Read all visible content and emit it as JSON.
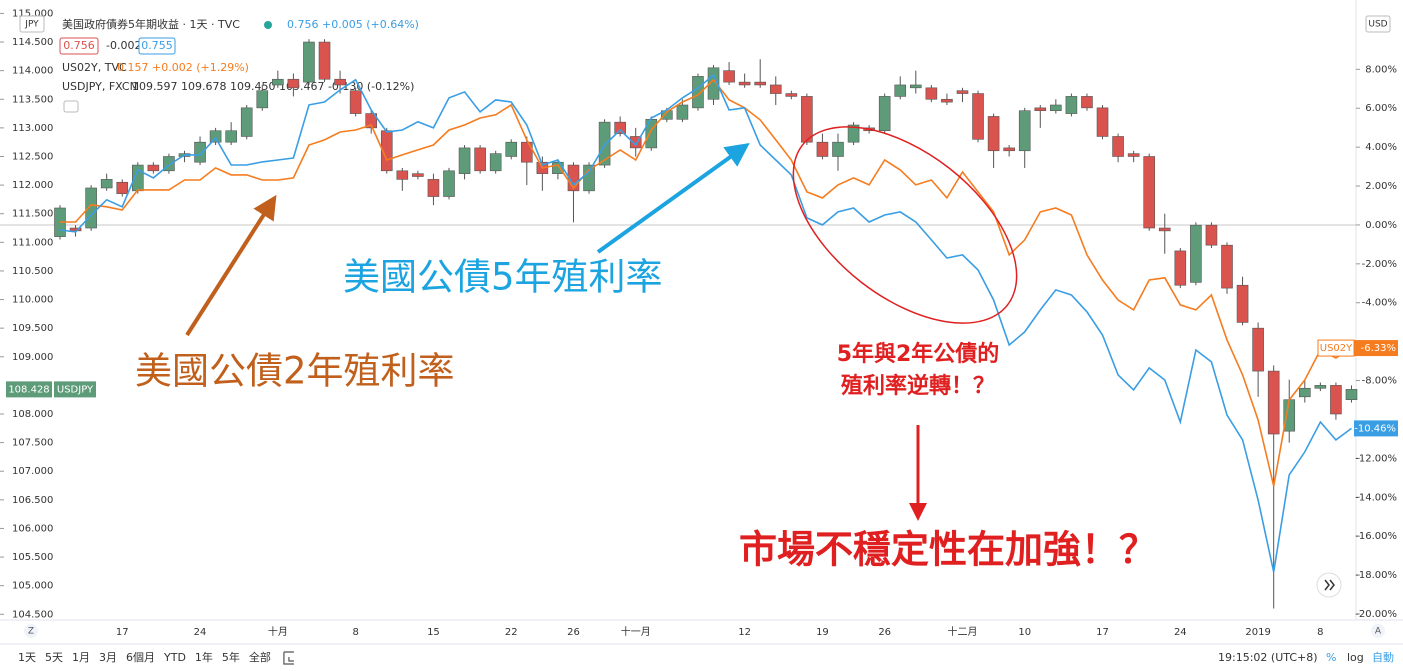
{
  "header": {
    "title": "美国政府債券5年期收益 · 1天 · TVC",
    "quote": "0.756 +0.005 (+0.64%)",
    "box1": "0.756",
    "change": "-0.002",
    "box2": "0.755",
    "line2_name": "US02Y, TVC",
    "line2_quote": "0.157 +0.002 (+1.29%)",
    "line3_name": "USDJPY, FXCM",
    "line3_quote": "109.597 109.678 109.450 109.467 -0.130 (-0.12%)"
  },
  "chart_data": {
    "type": "candlestick",
    "left_unit": "JPY",
    "right_unit": "USD",
    "symbol": "USDJPY",
    "last_price_label": "108.428",
    "up_color": "#5e9c79",
    "down_color": "#d9534f",
    "categories": [
      null,
      null,
      null,
      null,
      "17",
      null,
      null,
      null,
      null,
      "24",
      null,
      null,
      null,
      null,
      "十月",
      null,
      null,
      null,
      null,
      "8",
      null,
      null,
      null,
      null,
      "15",
      null,
      null,
      null,
      null,
      "22",
      null,
      null,
      null,
      "26",
      null,
      null,
      null,
      "十一月",
      null,
      null,
      null,
      null,
      null,
      null,
      "12",
      null,
      null,
      null,
      null,
      "19",
      null,
      null,
      null,
      "26",
      null,
      null,
      null,
      null,
      "十二月",
      null,
      null,
      null,
      "10",
      null,
      null,
      null,
      null,
      "17",
      null,
      null,
      null,
      null,
      "24",
      null,
      null,
      null,
      null,
      "2019",
      null,
      null,
      null,
      "8",
      null,
      null
    ],
    "candles": {
      "open": [
        111.1,
        111.25,
        111.25,
        111.95,
        112.05,
        111.9,
        112.35,
        112.25,
        112.5,
        112.4,
        112.75,
        112.75,
        112.85,
        113.35,
        113.75,
        113.85,
        113.8,
        114.5,
        113.85,
        113.65,
        113.25,
        112.95,
        112.25,
        112.2,
        112.1,
        111.8,
        112.2,
        112.65,
        112.25,
        112.5,
        112.75,
        112.4,
        112.2,
        112.35,
        111.9,
        112.35,
        113.1,
        112.85,
        112.65,
        113.15,
        113.15,
        113.35,
        113.5,
        114.0,
        113.8,
        113.8,
        113.75,
        113.6,
        113.55,
        112.75,
        112.5,
        112.75,
        113.0,
        112.95,
        113.55,
        113.7,
        113.7,
        113.5,
        113.65,
        113.6,
        113.2,
        112.65,
        112.6,
        113.35,
        113.3,
        113.25,
        113.55,
        113.35,
        112.85,
        112.55,
        112.5,
        111.25,
        110.85,
        110.3,
        111.3,
        110.95,
        110.25,
        109.5,
        108.75,
        107.7,
        108.3,
        108.45,
        108.5,
        108.25
      ],
      "high": [
        111.65,
        111.3,
        112.0,
        112.2,
        112.1,
        112.4,
        112.4,
        112.55,
        112.6,
        112.85,
        113.0,
        113.1,
        113.4,
        113.75,
        114.0,
        113.95,
        114.55,
        114.55,
        114.0,
        113.7,
        113.3,
        113.0,
        112.3,
        112.25,
        112.2,
        112.3,
        112.7,
        112.7,
        112.6,
        112.8,
        112.85,
        112.5,
        112.45,
        112.4,
        112.4,
        113.15,
        113.2,
        113.0,
        113.2,
        113.35,
        113.5,
        113.95,
        114.1,
        114.15,
        113.95,
        114.2,
        113.9,
        113.65,
        113.6,
        112.9,
        112.9,
        113.1,
        113.05,
        113.6,
        113.9,
        114.0,
        113.75,
        113.6,
        113.7,
        113.65,
        113.25,
        112.7,
        113.35,
        113.4,
        113.5,
        113.6,
        113.6,
        113.4,
        112.9,
        112.6,
        112.55,
        111.5,
        110.9,
        111.35,
        111.35,
        111.0,
        110.4,
        109.6,
        108.85,
        108.6,
        108.6,
        108.55,
        108.55,
        108.5
      ],
      "low": [
        111.05,
        111.1,
        111.2,
        111.9,
        111.8,
        111.85,
        112.2,
        112.2,
        112.4,
        112.35,
        112.7,
        112.7,
        112.8,
        113.3,
        113.7,
        113.55,
        113.75,
        113.8,
        113.6,
        113.2,
        112.9,
        112.2,
        111.9,
        112.1,
        111.65,
        111.75,
        112.1,
        112.2,
        112.2,
        112.45,
        112.0,
        111.9,
        112.1,
        111.35,
        111.85,
        112.3,
        112.85,
        112.5,
        112.6,
        113.1,
        113.1,
        113.3,
        113.4,
        113.75,
        113.7,
        113.7,
        113.4,
        113.5,
        112.7,
        112.45,
        112.25,
        112.7,
        112.9,
        112.9,
        113.5,
        113.6,
        113.45,
        113.4,
        113.45,
        112.75,
        112.3,
        112.5,
        112.3,
        113.0,
        113.25,
        113.2,
        113.3,
        112.8,
        112.4,
        112.4,
        111.2,
        110.8,
        110.2,
        110.25,
        110.9,
        110.1,
        109.55,
        108.3,
        104.6,
        107.5,
        108.2,
        108.4,
        107.9,
        108.2
      ],
      "close": [
        111.6,
        111.2,
        111.95,
        112.1,
        111.85,
        112.35,
        112.25,
        112.5,
        112.55,
        112.75,
        112.95,
        112.95,
        113.35,
        113.65,
        113.85,
        113.7,
        114.5,
        113.85,
        113.75,
        113.25,
        113.0,
        112.25,
        112.1,
        112.15,
        111.8,
        112.25,
        112.65,
        112.25,
        112.55,
        112.75,
        112.4,
        112.2,
        112.4,
        111.9,
        112.35,
        113.1,
        112.9,
        112.65,
        113.15,
        113.3,
        113.4,
        113.9,
        114.05,
        113.8,
        113.75,
        113.75,
        113.6,
        113.55,
        112.75,
        112.5,
        112.75,
        113.05,
        112.95,
        113.55,
        113.75,
        113.75,
        113.5,
        113.45,
        113.6,
        112.8,
        112.6,
        112.6,
        113.3,
        113.3,
        113.4,
        113.55,
        113.35,
        112.85,
        112.5,
        112.5,
        111.25,
        111.2,
        110.25,
        111.3,
        110.95,
        110.2,
        109.6,
        108.75,
        107.65,
        108.25,
        108.45,
        108.5,
        108.0,
        108.43
      ]
    },
    "series": [
      {
        "name": "US02Y",
        "color": "#f57c1f",
        "axis": "y2",
        "last_label": "-6.33%",
        "values": [
          0.15,
          0.15,
          1.03,
          0.93,
          0.77,
          1.8,
          1.8,
          1.8,
          2.31,
          2.31,
          2.93,
          2.57,
          2.57,
          2.31,
          2.31,
          2.42,
          4.11,
          4.37,
          4.78,
          4.88,
          5.14,
          3.34,
          3.6,
          3.86,
          4.11,
          4.88,
          5.14,
          5.5,
          5.66,
          6.17,
          4.37,
          2.93,
          3.08,
          1.9,
          2.83,
          3.34,
          3.86,
          3.34,
          4.88,
          5.81,
          6.32,
          6.68,
          7.46,
          6.43,
          6.02,
          5.4,
          4.37,
          3.34,
          1.7,
          1.39,
          2.06,
          2.42,
          2.06,
          3.34,
          2.83,
          2.06,
          2.31,
          1.39,
          2.72,
          1.7,
          0.67,
          -1.54,
          -0.77,
          0.67,
          0.87,
          0.51,
          -1.54,
          -2.83,
          -3.86,
          -4.37,
          -2.83,
          -2.72,
          -4.11,
          -4.37,
          -3.6,
          -5.91,
          -7.71,
          -10.03,
          -13.42,
          -9.0,
          -7.97,
          -6.43,
          -6.84,
          -6.33
        ]
      },
      {
        "color": "#3a9ee4",
        "axis": "y2",
        "last_label": "-10.46%",
        "values": [
          -0.26,
          -0.36,
          0.51,
          1.29,
          0.93,
          2.83,
          2.42,
          3.08,
          3.6,
          3.6,
          4.47,
          3.08,
          3.08,
          3.24,
          3.34,
          3.44,
          6.17,
          6.32,
          6.94,
          7.46,
          5.91,
          4.78,
          4.88,
          5.3,
          4.99,
          6.53,
          6.84,
          5.81,
          6.43,
          6.32,
          5.14,
          3.08,
          3.34,
          2.06,
          2.72,
          4.11,
          4.88,
          4.11,
          5.5,
          5.91,
          6.53,
          7.04,
          7.71,
          5.91,
          6.02,
          4.11,
          3.34,
          2.57,
          0.36,
          0,
          0.67,
          0.87,
          0.15,
          0.51,
          0.67,
          0.15,
          -0.77,
          -1.7,
          -1.54,
          -2.31,
          -3.86,
          -6.17,
          -5.5,
          -4.37,
          -3.34,
          -3.6,
          -4.47,
          -5.66,
          -7.71,
          -8.48,
          -7.35,
          -7.97,
          -10.13,
          -6.43,
          -7.04,
          -9.77,
          -11.05,
          -14.14,
          -17.84,
          -12.85,
          -11.67,
          -10.13,
          -11.05,
          -10.46
        ]
      }
    ],
    "ylim": [
      104.4,
      115.06
    ],
    "yticks": [
      {
        "value": 115,
        "label": "115.000"
      },
      {
        "value": 114.5,
        "label": "114.500"
      },
      {
        "value": 114,
        "label": "114.000"
      },
      {
        "value": 113.5,
        "label": "113.500"
      },
      {
        "value": 113,
        "label": "113.000"
      },
      {
        "value": 112.5,
        "label": "112.500"
      },
      {
        "value": 112,
        "label": "112.000"
      },
      {
        "value": 111.5,
        "label": "111.500"
      },
      {
        "value": 111,
        "label": "111.000"
      },
      {
        "value": 110.5,
        "label": "110.500"
      },
      {
        "value": 110,
        "label": "110.000"
      },
      {
        "value": 109.5,
        "label": "109.500"
      },
      {
        "value": 109,
        "label": "109.000"
      },
      {
        "value": 108,
        "label": "108.000"
      },
      {
        "value": 107.5,
        "label": "107.500"
      },
      {
        "value": 107,
        "label": "107.000"
      },
      {
        "value": 106.5,
        "label": "106.500"
      },
      {
        "value": 106,
        "label": "106.000"
      },
      {
        "value": 105.5,
        "label": "105.500"
      },
      {
        "value": 105,
        "label": "105.000"
      },
      {
        "value": 104.5,
        "label": "104.500"
      }
    ],
    "y2lim": [
      -20.31,
      11.05
    ],
    "y2ticks": [
      {
        "value": 8,
        "label": "8.00%"
      },
      {
        "value": 6,
        "label": "6.00%"
      },
      {
        "value": 4,
        "label": "4.00%"
      },
      {
        "value": 2,
        "label": "2.00%"
      },
      {
        "value": 0,
        "label": "0.00%"
      },
      {
        "value": -2,
        "label": "-2.00%"
      },
      {
        "value": -4,
        "label": "-4.00%"
      },
      {
        "value": -8,
        "label": "-8.00%"
      },
      {
        "value": -12,
        "label": "-12.00%"
      },
      {
        "value": -14,
        "label": "-14.00%"
      },
      {
        "value": -16,
        "label": "-16.00%"
      },
      {
        "value": -18,
        "label": "-18.00%"
      },
      {
        "value": -20,
        "label": "-20.00%"
      }
    ],
    "annotations": {
      "us2y": "美國公債2年殖利率",
      "us5y": "美國公債5年殖利率",
      "inversion_1": "5年與2年公債的",
      "inversion_2": "殖利率逆轉！？",
      "instability": "市場不穩定性在加強！？"
    }
  },
  "scale_buttons": [
    "Z",
    "A"
  ],
  "toolbar": [
    "1天",
    "5天",
    "1月",
    "3月",
    "6個月",
    "YTD",
    "1年",
    "5年",
    "全部"
  ],
  "clock": "19:15:02 (UTC+8)",
  "scale_options": [
    "%",
    "log",
    "自動"
  ]
}
